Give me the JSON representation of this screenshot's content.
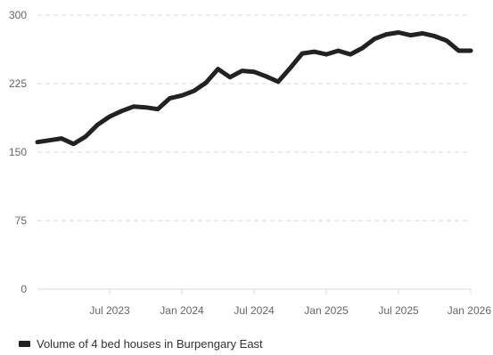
{
  "colors": {
    "line": "#222222",
    "grid": "#d9d9d9",
    "axis_text": "#666666"
  },
  "chart_data": {
    "type": "line",
    "title": "",
    "xlabel": "",
    "ylabel": "",
    "ylim": [
      0,
      300
    ],
    "yticks": [
      0,
      75,
      150,
      225,
      300
    ],
    "grid": true,
    "legend_position": "bottom-left",
    "x_ticks": [
      "Jul 2023",
      "Jan 2024",
      "Jul 2024",
      "Jan 2025",
      "Jul 2025",
      "Jan 2026"
    ],
    "x_range": [
      "2023-01",
      "2026-01"
    ],
    "series": [
      {
        "name": "Volume of 4 bed houses in Burpengary East",
        "x": [
          "2023-01",
          "2023-02",
          "2023-03",
          "2023-04",
          "2023-05",
          "2023-06",
          "2023-07",
          "2023-08",
          "2023-09",
          "2023-10",
          "2023-11",
          "2023-12",
          "2024-01",
          "2024-02",
          "2024-03",
          "2024-04",
          "2024-05",
          "2024-06",
          "2024-07",
          "2024-08",
          "2024-09",
          "2024-10",
          "2024-11",
          "2024-12",
          "2025-01",
          "2025-02",
          "2025-03",
          "2025-04",
          "2025-05",
          "2025-06",
          "2025-07",
          "2025-08",
          "2025-09",
          "2025-10",
          "2025-11",
          "2025-12",
          "2026-01"
        ],
        "values": [
          161,
          163,
          165,
          159,
          167,
          180,
          189,
          195,
          200,
          199,
          197,
          209,
          212,
          217,
          226,
          241,
          232,
          239,
          238,
          233,
          227,
          242,
          258,
          260,
          257,
          261,
          257,
          264,
          274,
          279,
          281,
          278,
          280,
          277,
          272,
          261,
          261
        ]
      }
    ]
  }
}
